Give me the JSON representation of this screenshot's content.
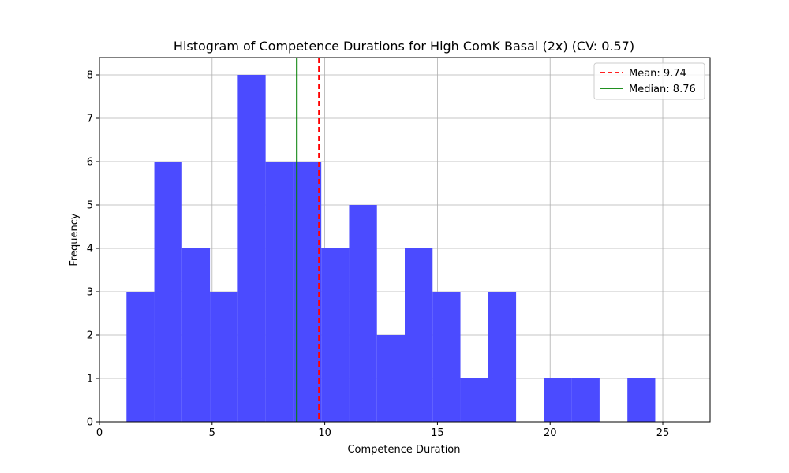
{
  "chart_data": {
    "type": "bar",
    "title": "Histogram of Competence Durations for High ComK Basal (2x) (CV: 0.57)",
    "xlabel": "Competence Duration",
    "ylabel": "Frequency",
    "xlim": [
      0,
      27.1
    ],
    "ylim": [
      0,
      8.4
    ],
    "xticks": [
      0,
      5,
      10,
      15,
      20,
      25
    ],
    "yticks": [
      0,
      1,
      2,
      3,
      4,
      5,
      6,
      7,
      8
    ],
    "grid": true,
    "bar_color": "#4b4bff",
    "bin_start": 1.2,
    "bin_width": 1.235,
    "counts": [
      3,
      6,
      4,
      3,
      8,
      6,
      6,
      4,
      5,
      2,
      4,
      3,
      1,
      3,
      0,
      1,
      1,
      0,
      1,
      0
    ],
    "lines": [
      {
        "name": "Mean: 9.74",
        "x": 9.74,
        "color": "#ff0000",
        "dashed": true
      },
      {
        "name": "Median: 8.76",
        "x": 8.76,
        "color": "#008000",
        "dashed": false
      }
    ],
    "legend_position": "upper right"
  }
}
